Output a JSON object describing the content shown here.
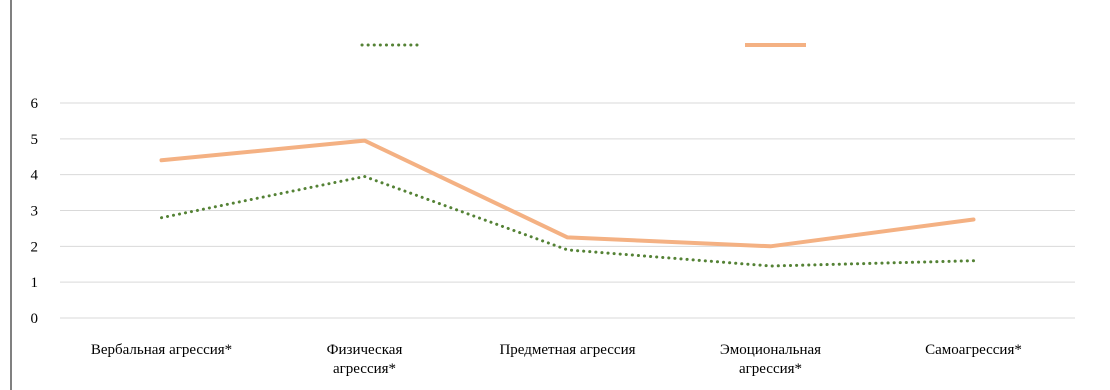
{
  "chart_data": {
    "type": "line",
    "categories": [
      [
        "Вербальная агрессия*"
      ],
      [
        "Физическая",
        "агрессия*"
      ],
      [
        "Предметная агрессия"
      ],
      [
        "Эмоциональная",
        "агрессия*"
      ],
      [
        "Самоагрессия*"
      ]
    ],
    "series": [
      {
        "values": [
          2.8,
          3.95,
          1.9,
          1.45,
          1.6
        ],
        "color": "#548235",
        "style": "dotted"
      },
      {
        "values": [
          4.4,
          4.95,
          2.25,
          2.0,
          2.75
        ],
        "color": "#F4B183",
        "style": "solid"
      }
    ],
    "ylim": [
      0,
      6
    ],
    "yticks": [
      0,
      1,
      2,
      3,
      4,
      5,
      6
    ],
    "grid": true,
    "legend": "top",
    "title": "",
    "xlabel": "",
    "ylabel": ""
  }
}
